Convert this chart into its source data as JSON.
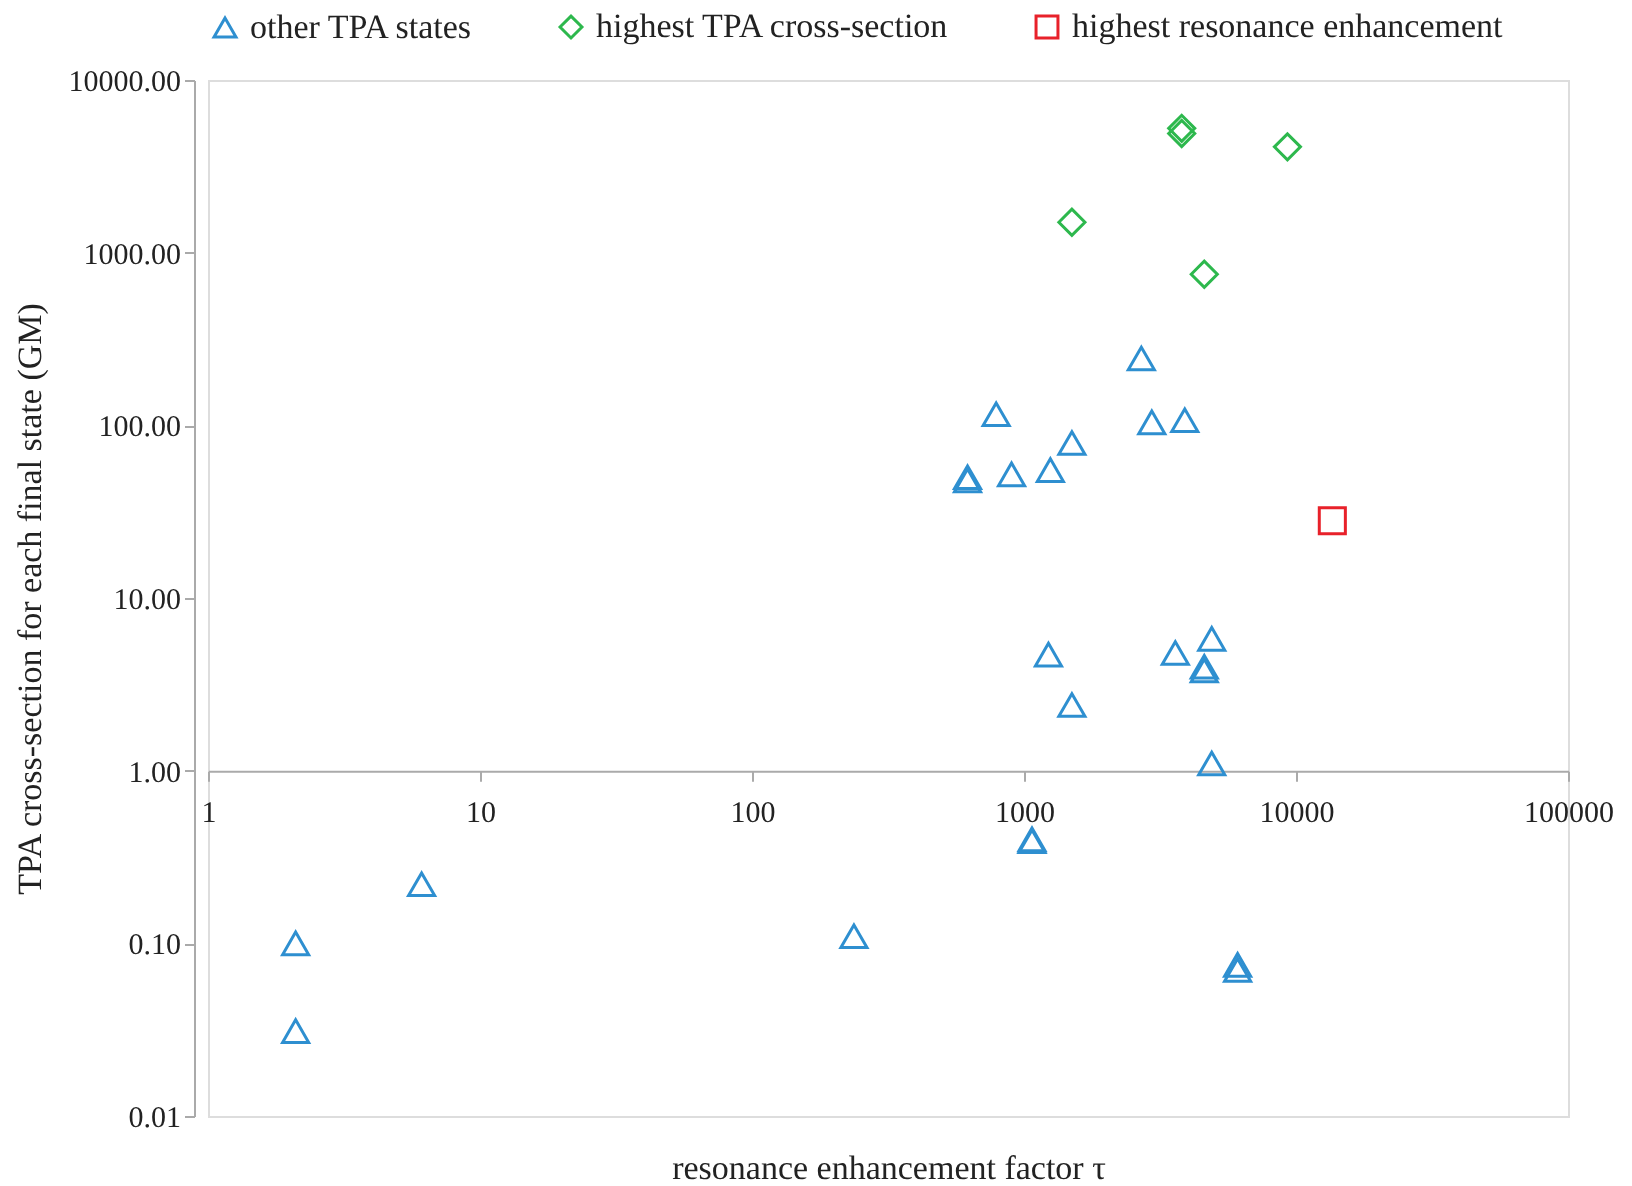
{
  "chart_data": {
    "type": "scatter",
    "xlabel": "resonance enhancement factor τ",
    "ylabel": "TPA cross-section for each final state (GM)",
    "log": "xy",
    "grid": false,
    "legend": "top",
    "xlim": [
      1,
      100000
    ],
    "xticks": [
      1,
      10,
      100,
      1000,
      10000,
      100000
    ],
    "ylim": [
      0.01,
      10000
    ],
    "yticks": [
      {
        "value": 0.01,
        "label": "0.01"
      },
      {
        "value": 0.1,
        "label": "0.10"
      },
      {
        "value": 1,
        "label": "1.00"
      },
      {
        "value": 10,
        "label": "10.00"
      },
      {
        "value": 100,
        "label": "100.00"
      },
      {
        "value": 1000,
        "label": "1000.00"
      },
      {
        "value": 10000,
        "label": "10000.00"
      }
    ],
    "series": [
      {
        "name": "other TPA states",
        "color": "#2e8fd0",
        "marker": "triangle",
        "x": [
          2.1,
          2.1,
          6.1,
          237,
          1070,
          1070,
          6100,
          6100,
          4900,
          1230,
          1500,
          3600,
          4900,
          4600,
          4600,
          2700,
          790,
          2950,
          3900,
          1500,
          620,
          620,
          900,
          1250
        ],
        "values": [
          0.1,
          0.031,
          0.22,
          0.11,
          0.39,
          0.4,
          0.075,
          0.07,
          1.1,
          4.7,
          2.4,
          4.8,
          5.8,
          4.0,
          3.8,
          244,
          116,
          104,
          107,
          79,
          50,
          48,
          52,
          55
        ]
      },
      {
        "name": "highest TPA cross-section",
        "color": "#2db84d",
        "marker": "diamond",
        "x": [
          3800,
          3800,
          9300,
          1500,
          4600
        ],
        "values": [
          5250,
          4900,
          4100,
          1500,
          750
        ]
      },
      {
        "name": "highest resonance enhancement",
        "color": "#e8212a",
        "marker": "square",
        "x": [
          13600
        ],
        "values": [
          28
        ]
      }
    ]
  }
}
